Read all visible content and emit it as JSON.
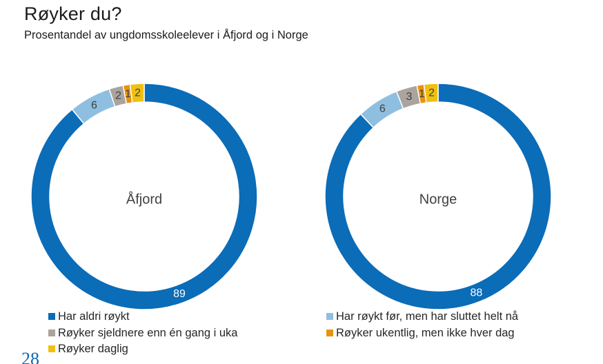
{
  "title": "Røyker du?",
  "subtitle": "Prosentandel av ungdomsskoleelever i Åfjord og i Norge",
  "page_number": "28",
  "colors": {
    "Har aldri røykt": "#0b6cb8",
    "Har røykt før, men har sluttet helt nå": "#8fbfe0",
    "Røyker sjeldnere enn én gang i uka": "#aaa39e",
    "Røyker ukentlig, men ikke hver dag": "#e8930f",
    "Røyker daglig": "#f0c010"
  },
  "legend": [
    "Har aldri røykt",
    "Har røykt før, men har sluttet helt nå",
    "Røyker sjeldnere enn én gang i uka",
    "Røyker ukentlig, men ikke hver dag",
    "Røyker daglig"
  ],
  "chart_data": [
    {
      "type": "pie",
      "variant": "donut",
      "center_label": "Åfjord",
      "categories": [
        "Har aldri røykt",
        "Har røykt før, men har sluttet helt nå",
        "Røyker sjeldnere enn én gang i uka",
        "Røyker ukentlig, men ikke hver dag",
        "Røyker daglig"
      ],
      "values": [
        89,
        6,
        2,
        1,
        2
      ],
      "data_labels": [
        "89",
        "6",
        "2",
        "1",
        "2"
      ]
    },
    {
      "type": "pie",
      "variant": "donut",
      "center_label": "Norge",
      "categories": [
        "Har aldri røykt",
        "Har røykt før, men har sluttet helt nå",
        "Røyker sjeldnere enn én gang i uka",
        "Røyker ukentlig, men ikke hver dag",
        "Røyker daglig"
      ],
      "values": [
        88,
        6,
        3,
        1,
        2
      ],
      "data_labels": [
        "88",
        "6",
        "3",
        "1",
        "2"
      ]
    }
  ]
}
